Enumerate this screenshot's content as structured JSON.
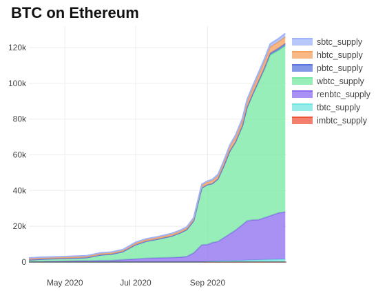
{
  "chart_data": {
    "type": "area",
    "title": "BTC on Ethereum",
    "xlabel": "",
    "ylabel": "",
    "ylim": [
      0,
      132000
    ],
    "xlim": [
      "2020-03-31",
      "2020-11-08"
    ],
    "grid": true,
    "legend_position": "right",
    "x_ticks": [
      {
        "date": "2020-05-01",
        "label": "May 2020"
      },
      {
        "date": "2020-07-01",
        "label": "Jul 2020"
      },
      {
        "date": "2020-09-01",
        "label": "Sep 2020"
      }
    ],
    "y_ticks": [
      {
        "value": 0,
        "label": "0"
      },
      {
        "value": 20000,
        "label": "20k"
      },
      {
        "value": 40000,
        "label": "40k"
      },
      {
        "value": 60000,
        "label": "60k"
      },
      {
        "value": 80000,
        "label": "80k"
      },
      {
        "value": 100000,
        "label": "100k"
      },
      {
        "value": 120000,
        "label": "120k"
      }
    ],
    "stacked": true,
    "x": [
      "2020-03-31",
      "2020-04-10",
      "2020-04-20",
      "2020-05-01",
      "2020-05-10",
      "2020-05-20",
      "2020-06-01",
      "2020-06-10",
      "2020-06-20",
      "2020-07-01",
      "2020-07-10",
      "2020-07-20",
      "2020-08-01",
      "2020-08-08",
      "2020-08-14",
      "2020-08-20",
      "2020-08-27",
      "2020-09-01",
      "2020-09-05",
      "2020-09-10",
      "2020-09-15",
      "2020-09-20",
      "2020-09-25",
      "2020-10-01",
      "2020-10-05",
      "2020-10-10",
      "2020-10-15",
      "2020-10-20",
      "2020-10-25",
      "2020-11-01",
      "2020-11-07"
    ],
    "series": [
      {
        "name": "imbtc_supply",
        "color": "#ef553b",
        "values": [
          100,
          100,
          100,
          100,
          100,
          100,
          100,
          100,
          100,
          100,
          100,
          100,
          100,
          100,
          100,
          100,
          100,
          100,
          100,
          100,
          100,
          100,
          100,
          100,
          100,
          100,
          100,
          100,
          100,
          100,
          100
        ]
      },
      {
        "name": "tbtc_supply",
        "color": "#72e6e0",
        "values": [
          0,
          0,
          0,
          0,
          0,
          0,
          0,
          0,
          0,
          0,
          0,
          0,
          0,
          0,
          0,
          0,
          0,
          200,
          300,
          400,
          500,
          600,
          700,
          800,
          900,
          1000,
          1100,
          1200,
          1300,
          1400,
          1500
        ]
      },
      {
        "name": "renbtc_supply",
        "color": "#8c6cf0",
        "values": [
          100,
          200,
          300,
          400,
          500,
          600,
          700,
          800,
          1200,
          1600,
          2000,
          2200,
          2400,
          2600,
          3000,
          5000,
          9500,
          9500,
          10500,
          11000,
          13000,
          15000,
          17000,
          20000,
          22000,
          22500,
          22500,
          23500,
          24500,
          26000,
          26500
        ]
      },
      {
        "name": "wbtc_supply",
        "color": "#74e8a0",
        "values": [
          1000,
          1300,
          1400,
          1500,
          1600,
          1800,
          3200,
          3500,
          4500,
          8000,
          9500,
          10500,
          12000,
          13500,
          15000,
          18000,
          32000,
          33500,
          33000,
          35000,
          40000,
          46000,
          49000,
          55000,
          63000,
          70000,
          77000,
          83000,
          90000,
          91000,
          93000
        ]
      },
      {
        "name": "pbtc_supply",
        "color": "#5b75e0",
        "values": [
          0,
          0,
          0,
          0,
          0,
          0,
          0,
          0,
          0,
          0,
          0,
          0,
          0,
          0,
          0,
          0,
          0,
          0,
          0,
          100,
          200,
          300,
          400,
          500,
          600,
          700,
          800,
          900,
          1000,
          1100,
          1200
        ]
      },
      {
        "name": "hbtc_supply",
        "color": "#f6a05c",
        "values": [
          800,
          800,
          800,
          800,
          800,
          800,
          900,
          900,
          900,
          1000,
          1000,
          1000,
          1100,
          1100,
          1100,
          1200,
          1400,
          1500,
          1600,
          1700,
          2000,
          2300,
          2600,
          2800,
          3000,
          3000,
          3200,
          3400,
          3500,
          3600,
          3700
        ]
      },
      {
        "name": "sbtc_supply",
        "color": "#9fb4f8",
        "values": [
          300,
          300,
          300,
          300,
          300,
          300,
          300,
          300,
          300,
          400,
          400,
          400,
          400,
          400,
          400,
          500,
          500,
          600,
          700,
          800,
          900,
          1000,
          1100,
          1200,
          1300,
          1400,
          1500,
          1600,
          1700,
          1800,
          1900
        ]
      }
    ]
  },
  "legend_order": [
    "sbtc_supply",
    "hbtc_supply",
    "pbtc_supply",
    "wbtc_supply",
    "renbtc_supply",
    "tbtc_supply",
    "imbtc_supply"
  ]
}
